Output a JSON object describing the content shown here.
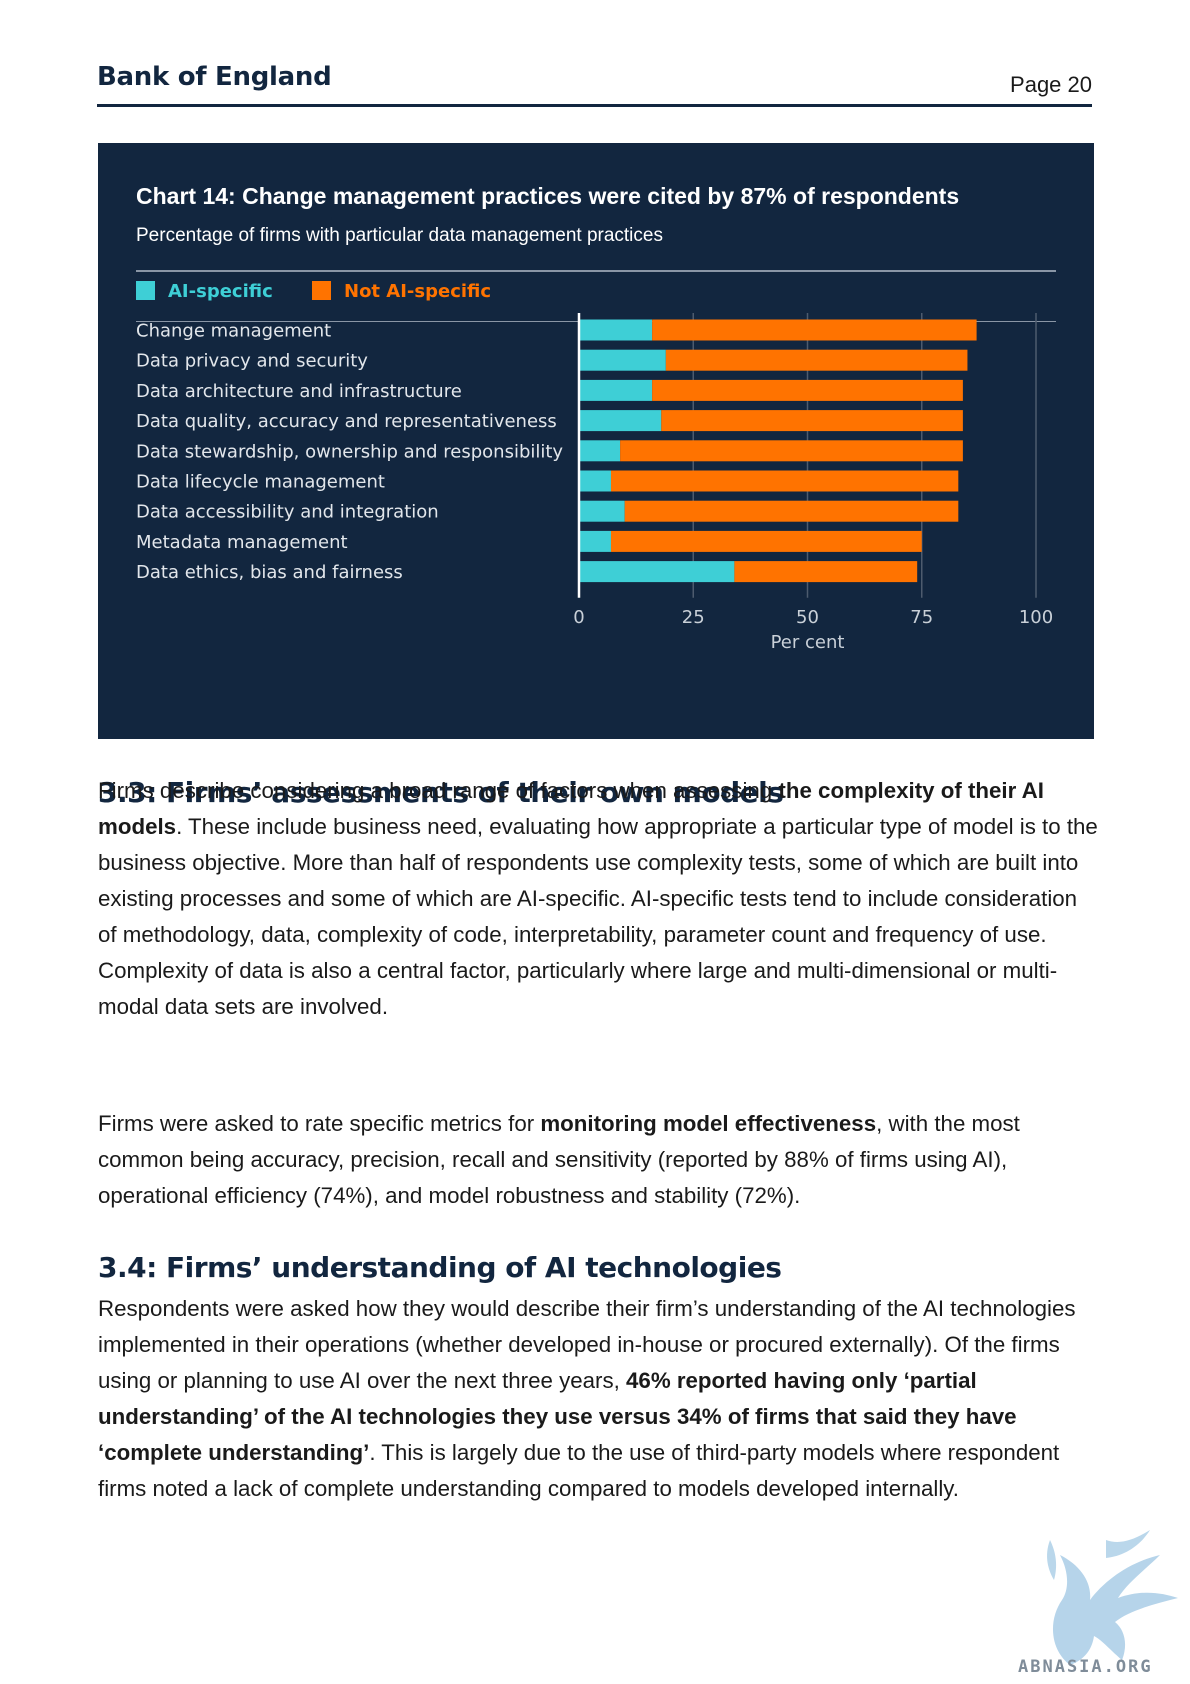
{
  "header": {
    "brand": "Bank of England",
    "page": "Page 20"
  },
  "chart_data": {
    "type": "bar",
    "orientation": "horizontal",
    "stacked": true,
    "title": "Chart 14: Change management practices were cited by 87% of respondents",
    "subtitle": "Percentage of firms with particular data management practices",
    "categories": [
      "Change management",
      "Data privacy and security",
      "Data architecture and infrastructure",
      "Data quality, accuracy and representativeness",
      "Data stewardship, ownership and responsibility",
      "Data lifecycle management",
      "Data accessibility and integration",
      "Metadata management",
      "Data ethics, bias and fairness"
    ],
    "series": [
      {
        "name": "AI-specific",
        "color": "#3ecfd6",
        "values": [
          16,
          19,
          16,
          18,
          9,
          7,
          10,
          7,
          34
        ]
      },
      {
        "name": "Not AI-specific",
        "color": "#ff7300",
        "values": [
          71,
          66,
          68,
          66,
          75,
          76,
          73,
          68,
          40
        ]
      }
    ],
    "xlim": [
      0,
      100
    ],
    "xticks": [
      "0",
      "25",
      "50",
      "75",
      "100"
    ],
    "xlabel": "Per cent",
    "grid": true,
    "legend": "top-left",
    "background": "#12263f"
  },
  "sections": [
    {
      "heading": "3.3: Firms’ assessments of their own models",
      "paragraphs": [
        [
          {
            "text": "Firms describe considering a broad range of factors when assessing "
          },
          {
            "text": "the complexity of their AI models",
            "bold": true
          },
          {
            "text": ". These include business need, evaluating how appropriate a particular type of model is to the business objective. More than half of respondents use complexity tests, some of which are built into existing processes and some of which are AI-specific. AI-specific tests tend to include consideration of methodology, data, complexity of code, interpretability, parameter count and frequency of use. Complexity of data is also a central factor, particularly where large and multi-dimensional or multi-modal data sets are involved."
          }
        ],
        [
          {
            "text": "Firms were asked to rate specific metrics for "
          },
          {
            "text": "monitoring model effectiveness",
            "bold": true
          },
          {
            "text": ", with the most common being accuracy, precision, recall and sensitivity (reported by 88% of firms using AI), operational efficiency (74%), and model robustness and stability (72%)."
          }
        ]
      ]
    },
    {
      "heading": "3.4: Firms’ understanding of AI technologies",
      "paragraphs": [
        [
          {
            "text": "Respondents were asked how they would describe their firm’s understanding of the AI technologies implemented in their operations (whether developed in-house or procured externally). Of the firms using or planning to use AI over the next three years, "
          },
          {
            "text": "46% reported having only ‘partial understanding’ of the AI technologies they use versus 34% of firms that said they have ‘complete understanding’",
            "bold": true
          },
          {
            "text": ". This is largely due to the use of third-party models where respondent firms noted a lack of complete understanding compared to models developed internally."
          }
        ]
      ]
    }
  ],
  "watermark": {
    "text": "ABNASIA.ORG",
    "icon": "griffin-logo-icon"
  }
}
